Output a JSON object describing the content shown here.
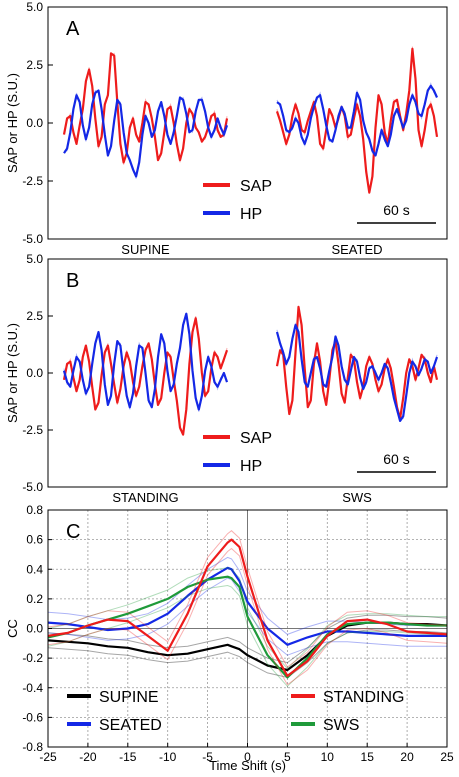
{
  "chart_data": [
    {
      "type": "line",
      "panel_label": "A",
      "ylabel": "SAP or HP (S.U.)",
      "ylim": [
        -5.0,
        5.0
      ],
      "yticks": [
        "5.0",
        "2.5",
        "0.0",
        "-2.5",
        "-5.0"
      ],
      "grid": false,
      "legend": {
        "position": "bottom-center",
        "entries": [
          "SAP",
          "HP"
        ]
      },
      "scalebar_label": "60 s",
      "segments": [
        {
          "label": "SUPINE",
          "series": [
            {
              "name": "SAP",
              "color": "#ee1c1c",
              "values": [
                -0.5,
                0.2,
                0.3,
                -0.4,
                -0.9,
                -0.1,
                0.6,
                1.8,
                2.3,
                1.6,
                0.2,
                -1.0,
                -0.6,
                0.8,
                1.2,
                3.0,
                2.9,
                0.9,
                -0.9,
                -1.7,
                -1.3,
                -0.2,
                0.2,
                -0.5,
                -0.8,
                0.0,
                0.9,
                0.8,
                0.2,
                -0.6,
                -1.6,
                -1.3,
                -0.4,
                0.6,
                0.7,
                0.0,
                -0.9,
                -1.6,
                -1.1,
                0.0,
                0.6,
                0.4,
                -0.2,
                -0.4,
                -0.8,
                -0.6,
                -0.2,
                0.3,
                0.4,
                -0.3,
                -0.6,
                -0.5,
                0.2
              ]
            },
            {
              "name": "HP",
              "color": "#1428e6",
              "values": [
                -1.3,
                -1.1,
                -0.4,
                0.6,
                1.2,
                0.9,
                -0.1,
                -0.7,
                -0.2,
                0.8,
                1.3,
                1.4,
                0.6,
                -0.5,
                -1.4,
                -1.0,
                0.1,
                1.0,
                0.8,
                -0.4,
                -1.3,
                -1.6,
                -2.0,
                -2.3,
                -1.7,
                -0.5,
                0.3,
                0.0,
                -0.6,
                -0.3,
                0.5,
                0.9,
                0.3,
                -0.5,
                -0.9,
                -0.4,
                0.3,
                1.1,
                1.0,
                0.4,
                -0.4,
                -0.3,
                0.5,
                1.0,
                1.0,
                0.5,
                -0.2,
                -0.6,
                -0.3,
                0.2,
                -0.2,
                -0.5,
                -0.1
              ]
            }
          ]
        },
        {
          "label": "SEATED",
          "series": [
            {
              "name": "SAP",
              "color": "#ee1c1c",
              "values": [
                0.5,
                0.1,
                -0.4,
                -0.9,
                -0.5,
                0.3,
                0.8,
                0.4,
                -0.3,
                -0.4,
                0.1,
                0.5,
                0.9,
                0.3,
                -0.9,
                -1.1,
                -0.3,
                0.6,
                0.3,
                -0.2,
                0.2,
                0.7,
                0.3,
                -0.6,
                -0.5,
                0.2,
                0.8,
                0.3,
                -0.7,
                -2.1,
                -3.0,
                -2.3,
                -0.2,
                1.2,
                0.8,
                -0.4,
                -0.9,
                0.1,
                0.9,
                1.0,
                0.3,
                -0.3,
                0.4,
                1.4,
                3.2,
                1.9,
                -0.3,
                -1.0,
                -0.3,
                0.6,
                0.8,
                0.3,
                -0.6
              ]
            },
            {
              "name": "HP",
              "color": "#1428e6",
              "values": [
                0.9,
                0.8,
                0.3,
                -0.3,
                -0.4,
                -0.2,
                0.2,
                0.0,
                -0.6,
                -0.9,
                -0.5,
                0.2,
                0.7,
                1.1,
                1.2,
                0.6,
                -0.1,
                -0.7,
                -0.8,
                -0.3,
                0.3,
                0.7,
                0.4,
                -0.2,
                -0.2,
                0.5,
                1.3,
                1.0,
                0.1,
                -0.4,
                -0.7,
                -1.2,
                -1.4,
                -0.9,
                -0.3,
                -0.7,
                -1.0,
                -0.5,
                0.3,
                0.6,
                0.2,
                -0.2,
                0.1,
                0.8,
                1.2,
                0.9,
                0.4,
                0.3,
                0.8,
                1.4,
                1.6,
                1.4,
                1.1
              ]
            }
          ]
        }
      ]
    },
    {
      "type": "line",
      "panel_label": "B",
      "ylabel": "SAP or HP (S.U.)",
      "ylim": [
        -5.0,
        5.0
      ],
      "yticks": [
        "5.0",
        "2.5",
        "0.0",
        "-2.5",
        "-5.0"
      ],
      "grid": false,
      "legend": {
        "position": "bottom-center",
        "entries": [
          "SAP",
          "HP"
        ]
      },
      "scalebar_label": "60 s",
      "segments": [
        {
          "label": "STANDING",
          "series": [
            {
              "name": "SAP",
              "color": "#ee1c1c",
              "values": [
                -0.3,
                0.4,
                0.5,
                -0.2,
                -0.8,
                -0.3,
                0.7,
                1.2,
                0.5,
                -0.6,
                -1.6,
                -1.3,
                -0.1,
                0.9,
                1.2,
                0.4,
                -0.5,
                -1.3,
                -0.7,
                0.3,
                0.9,
                0.5,
                -0.4,
                -1.0,
                -0.6,
                0.3,
                1.0,
                1.3,
                0.6,
                -0.5,
                -1.4,
                -1.1,
                0.0,
                0.9,
                0.7,
                -0.3,
                -1.2,
                -2.4,
                -2.7,
                -1.6,
                0.4,
                1.8,
                2.4,
                1.5,
                0.0,
                -1.0,
                -0.8,
                0.2,
                0.9,
                0.7,
                0.2,
                0.6,
                1.0
              ]
            },
            {
              "name": "HP",
              "color": "#1428e6",
              "values": [
                0.1,
                -0.4,
                -0.6,
                0.1,
                0.7,
                0.5,
                -0.3,
                -0.9,
                -0.6,
                0.4,
                1.3,
                1.8,
                1.0,
                -0.5,
                -1.4,
                -1.0,
                0.4,
                1.4,
                1.2,
                0.0,
                -1.0,
                -1.5,
                -0.9,
                0.3,
                1.2,
                1.1,
                0.0,
                -1.2,
                -1.5,
                -0.7,
                0.7,
                1.7,
                1.3,
                0.1,
                -0.8,
                -0.5,
                0.4,
                1.1,
                2.1,
                2.6,
                1.7,
                0.1,
                -1.1,
                -1.6,
                -1.0,
                0.1,
                0.7,
                0.3,
                -0.4,
                -0.6,
                -0.3,
                0.0,
                -0.4
              ]
            }
          ]
        },
        {
          "label": "SWS",
          "series": [
            {
              "name": "SAP",
              "color": "#ee1c1c",
              "values": [
                0.3,
                1.0,
                0.8,
                -0.6,
                -1.8,
                -1.2,
                0.9,
                2.9,
                2.1,
                0.2,
                -1.5,
                -1.2,
                0.4,
                1.3,
                0.5,
                -0.8,
                -1.4,
                -0.3,
                1.0,
                1.4,
                0.4,
                -0.9,
                -1.3,
                -0.2,
                0.8,
                0.6,
                -0.4,
                -1.1,
                -0.6,
                0.3,
                0.7,
                0.4,
                -0.3,
                -0.8,
                -0.5,
                0.2,
                0.6,
                0.2,
                -0.6,
                -1.5,
                -2.0,
                -1.1,
                0.0,
                0.6,
                0.3,
                -0.3,
                0.2,
                0.8,
                0.6,
                0.0,
                -0.4,
                0.3,
                -0.3
              ]
            },
            {
              "name": "HP",
              "color": "#1428e6",
              "values": [
                1.8,
                1.3,
                0.9,
                0.4,
                0.7,
                1.5,
                2.1,
                1.8,
                0.6,
                -0.4,
                -0.6,
                0.0,
                0.6,
                0.7,
                0.2,
                -0.5,
                -0.6,
                0.1,
                0.7,
                1.6,
                1.2,
                0.3,
                -0.3,
                -0.5,
                0.1,
                0.7,
                0.5,
                -0.2,
                -0.7,
                -0.4,
                0.2,
                0.3,
                0.0,
                -0.3,
                0.0,
                0.4,
                0.2,
                -0.4,
                -1.1,
                -1.6,
                -2.1,
                -1.9,
                -1.0,
                0.0,
                0.5,
                0.3,
                -0.1,
                0.2,
                0.6,
                0.5,
                0.0,
                0.3,
                0.7
              ]
            }
          ]
        }
      ]
    },
    {
      "type": "line",
      "panel_label": "C",
      "xlabel": "Time Shift (s)",
      "ylabel": "CC",
      "xlim": [
        -25,
        25
      ],
      "ylim": [
        -0.8,
        0.8
      ],
      "xticks": [
        "-25",
        "-20",
        "-15",
        "-10",
        "-5",
        "0",
        "5",
        "10",
        "15",
        "20",
        "25"
      ],
      "yticks": [
        "0.8",
        "0.6",
        "0.4",
        "0.2",
        "0.0",
        "-0.2",
        "-0.4",
        "-0.6",
        "-0.8"
      ],
      "grid": true,
      "legend": {
        "position": "bottom",
        "columns": 2
      },
      "x": [
        -25,
        -22.5,
        -20,
        -17.5,
        -15,
        -12.5,
        -10,
        -7.5,
        -5,
        -2.5,
        -2,
        -1,
        0,
        2.5,
        5,
        7.5,
        10,
        12.5,
        15,
        17.5,
        20,
        22.5,
        25
      ],
      "series": [
        {
          "name": "SUPINE",
          "color": "#000000",
          "values": [
            -0.08,
            -0.09,
            -0.1,
            -0.12,
            -0.13,
            -0.16,
            -0.18,
            -0.17,
            -0.14,
            -0.11,
            -0.12,
            -0.14,
            -0.18,
            -0.25,
            -0.28,
            -0.18,
            -0.05,
            0.02,
            0.04,
            0.04,
            0.03,
            0.03,
            0.02
          ],
          "band": 0.05
        },
        {
          "name": "STANDING",
          "color": "#ee1c1c",
          "values": [
            -0.05,
            -0.03,
            0.02,
            0.06,
            0.05,
            -0.05,
            -0.15,
            0.1,
            0.42,
            0.58,
            0.6,
            0.55,
            0.35,
            -0.08,
            -0.32,
            -0.22,
            -0.05,
            0.05,
            0.06,
            0.03,
            -0.02,
            -0.03,
            -0.04
          ],
          "band": 0.06
        },
        {
          "name": "SEATED",
          "color": "#1428e6",
          "values": [
            0.04,
            0.03,
            0.01,
            -0.01,
            0.0,
            0.03,
            0.1,
            0.22,
            0.33,
            0.41,
            0.4,
            0.32,
            0.18,
            0.0,
            -0.11,
            -0.06,
            -0.02,
            -0.02,
            -0.03,
            -0.04,
            -0.05,
            -0.05,
            -0.05
          ],
          "band": 0.07
        },
        {
          "name": "SWS",
          "color": "#1f9a3a",
          "values": [
            -0.06,
            -0.03,
            0.02,
            0.06,
            0.1,
            0.15,
            0.2,
            0.28,
            0.33,
            0.35,
            0.34,
            0.28,
            0.08,
            -0.18,
            -0.33,
            -0.2,
            -0.04,
            0.03,
            0.04,
            0.04,
            0.03,
            0.02,
            0.02
          ],
          "band": 0.06
        }
      ],
      "legend_entries": [
        "SUPINE",
        "STANDING",
        "SEATED",
        "SWS"
      ]
    }
  ]
}
